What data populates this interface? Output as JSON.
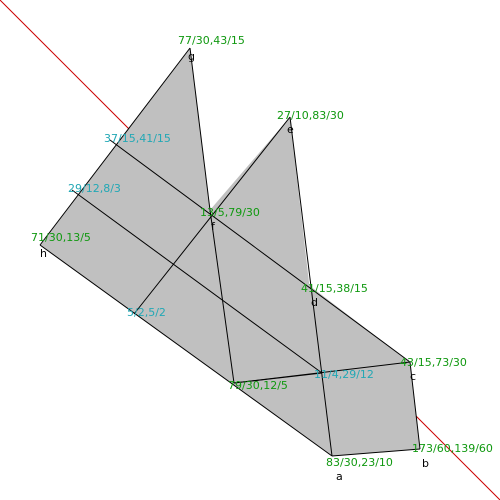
{
  "colors": {
    "background": "#ffffff",
    "fill": "#c0c0c0",
    "edge": "#000000",
    "ray": "#cc0000",
    "label_green": "#119911",
    "label_cyan": "#22a8b5"
  },
  "vertices": {
    "a": {
      "label": "a",
      "coord": "83/30,23/10"
    },
    "b": {
      "label": "b",
      "coord": "173/60,139/60"
    },
    "c": {
      "label": "c",
      "coord": "43/15,73/30"
    },
    "d": {
      "label": "d",
      "coord": "41/15,38/15"
    },
    "e": {
      "label": "e",
      "coord": "27/10,83/30"
    },
    "f": {
      "label": "f",
      "coord": "13/5,79/30"
    },
    "g": {
      "label": "g",
      "coord": "77/30,43/15"
    },
    "h": {
      "label": "h",
      "coord": "71/30,13/5"
    }
  },
  "points": {
    "p1": "37/15,41/15",
    "p2": "29/12,8/3",
    "p3": "5/2,5/2",
    "p4": "79/30,12/5",
    "p5": "11/4,29/12"
  }
}
